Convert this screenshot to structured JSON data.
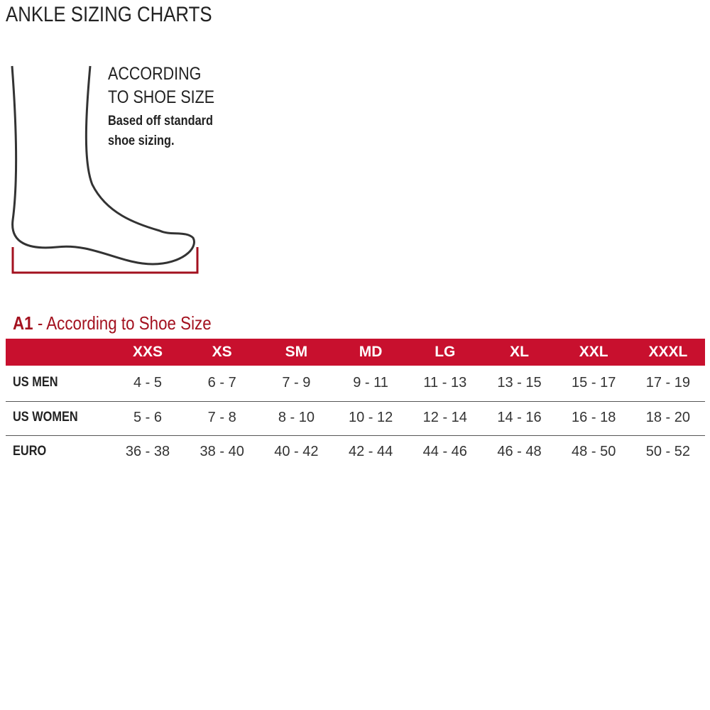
{
  "header": {
    "title": "ANKLE SIZING CHARTS"
  },
  "method": {
    "heading": [
      "ACCORDING",
      "TO SHOE SIZE"
    ],
    "description": [
      "Based off standard",
      "shoe sizing."
    ]
  },
  "table": {
    "id": "A1",
    "title": "- According to Shoe Size",
    "columns": [
      "XXS",
      "XS",
      "SM",
      "MD",
      "LG",
      "XL",
      "XXL",
      "XXXL"
    ],
    "rows": [
      {
        "label": "US MEN",
        "values": [
          "4 - 5",
          "6 - 7",
          "7 - 9",
          "9 - 11",
          "11 - 13",
          "13 - 15",
          "15 - 17",
          "17 - 19"
        ]
      },
      {
        "label": "US WOMEN",
        "values": [
          "5 - 6",
          "7 - 8",
          "8 - 10",
          "10 - 12",
          "12 - 14",
          "14 - 16",
          "16 - 18",
          "18 - 20"
        ]
      },
      {
        "label": "EURO",
        "values": [
          "36 - 38",
          "38 - 40",
          "40 - 42",
          "42 - 44",
          "44 - 46",
          "46 - 48",
          "48 - 50",
          "50 - 52"
        ]
      }
    ]
  }
}
